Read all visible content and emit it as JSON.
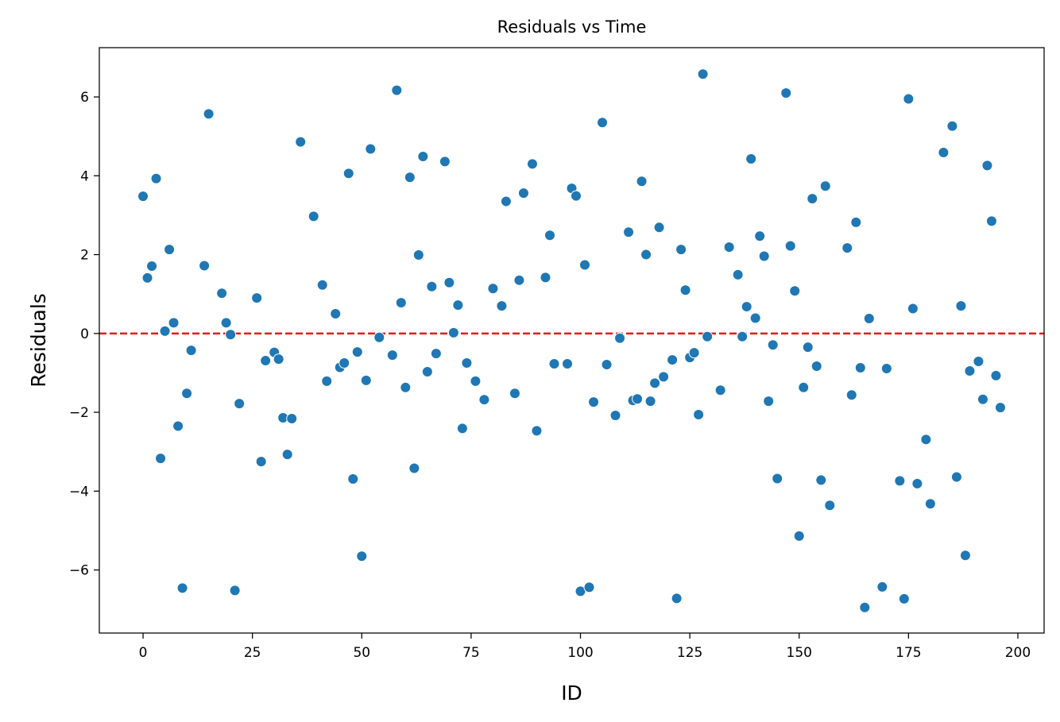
{
  "chart_data": {
    "type": "scatter",
    "title": "Residuals vs Time",
    "xlabel": "ID",
    "ylabel": "Residuals",
    "xlim": [
      -10,
      206
    ],
    "ylim": [
      -7.6,
      7.25
    ],
    "xticks": [
      0,
      25,
      50,
      75,
      100,
      125,
      150,
      175,
      200
    ],
    "xtick_labels": [
      "0",
      "25",
      "50",
      "75",
      "100",
      "125",
      "150",
      "175",
      "200"
    ],
    "yticks": [
      -6,
      -4,
      -2,
      0,
      2,
      4,
      6
    ],
    "ytick_labels": [
      "−6",
      "−4",
      "−2",
      "0",
      "2",
      "4",
      "6"
    ],
    "grid": false,
    "reference_line": {
      "y": 0,
      "style": "dashed",
      "color": "#e41a1c"
    },
    "point_color": "#1f77b4",
    "points": [
      [
        0,
        3.48
      ],
      [
        1,
        1.41
      ],
      [
        2,
        1.71
      ],
      [
        3,
        3.93
      ],
      [
        4,
        -3.17
      ],
      [
        5,
        0.06
      ],
      [
        6,
        2.13
      ],
      [
        7,
        0.27
      ],
      [
        8,
        -2.35
      ],
      [
        9,
        -6.46
      ],
      [
        10,
        -1.52
      ],
      [
        11,
        -0.43
      ],
      [
        14,
        1.72
      ],
      [
        15,
        5.57
      ],
      [
        18,
        1.02
      ],
      [
        19,
        0.27
      ],
      [
        20,
        -0.03
      ],
      [
        21,
        -6.52
      ],
      [
        22,
        -1.78
      ],
      [
        26,
        0.9
      ],
      [
        27,
        -3.25
      ],
      [
        28,
        -0.69
      ],
      [
        30,
        -0.48
      ],
      [
        31,
        -0.65
      ],
      [
        32,
        -2.14
      ],
      [
        33,
        -3.07
      ],
      [
        34,
        -2.16
      ],
      [
        36,
        4.86
      ],
      [
        39,
        2.97
      ],
      [
        41,
        1.23
      ],
      [
        42,
        -1.21
      ],
      [
        44,
        0.5
      ],
      [
        45,
        -0.86
      ],
      [
        46,
        -0.75
      ],
      [
        47,
        4.06
      ],
      [
        48,
        -3.69
      ],
      [
        49,
        -0.47
      ],
      [
        50,
        -5.65
      ],
      [
        51,
        -1.19
      ],
      [
        52,
        4.68
      ],
      [
        54,
        -0.1
      ],
      [
        57,
        -0.55
      ],
      [
        58,
        6.17
      ],
      [
        59,
        0.78
      ],
      [
        60,
        -1.37
      ],
      [
        61,
        3.96
      ],
      [
        62,
        -3.42
      ],
      [
        63,
        1.99
      ],
      [
        64,
        4.49
      ],
      [
        65,
        -0.97
      ],
      [
        66,
        1.19
      ],
      [
        67,
        -0.51
      ],
      [
        69,
        4.36
      ],
      [
        70,
        1.29
      ],
      [
        71,
        0.02
      ],
      [
        72,
        0.72
      ],
      [
        73,
        -2.41
      ],
      [
        74,
        -0.75
      ],
      [
        76,
        -1.21
      ],
      [
        78,
        -1.68
      ],
      [
        80,
        1.14
      ],
      [
        82,
        0.7
      ],
      [
        83,
        3.35
      ],
      [
        85,
        -1.52
      ],
      [
        86,
        1.35
      ],
      [
        87,
        3.56
      ],
      [
        89,
        4.3
      ],
      [
        90,
        -2.47
      ],
      [
        92,
        1.42
      ],
      [
        93,
        2.49
      ],
      [
        94,
        -0.77
      ],
      [
        97,
        -0.77
      ],
      [
        98,
        3.68
      ],
      [
        99,
        3.49
      ],
      [
        100,
        -6.54
      ],
      [
        101,
        1.74
      ],
      [
        102,
        -6.44
      ],
      [
        103,
        -1.74
      ],
      [
        105,
        5.35
      ],
      [
        106,
        -0.79
      ],
      [
        108,
        -2.08
      ],
      [
        109,
        -0.12
      ],
      [
        111,
        2.57
      ],
      [
        112,
        -1.7
      ],
      [
        113,
        -1.66
      ],
      [
        114,
        3.86
      ],
      [
        115,
        2.0
      ],
      [
        116,
        -1.72
      ],
      [
        117,
        -1.26
      ],
      [
        118,
        2.69
      ],
      [
        119,
        -1.1
      ],
      [
        121,
        -0.67
      ],
      [
        122,
        -6.72
      ],
      [
        123,
        2.13
      ],
      [
        124,
        1.1
      ],
      [
        125,
        -0.61
      ],
      [
        126,
        -0.49
      ],
      [
        127,
        -2.06
      ],
      [
        128,
        6.58
      ],
      [
        129,
        -0.08
      ],
      [
        132,
        -1.44
      ],
      [
        134,
        2.19
      ],
      [
        136,
        1.49
      ],
      [
        137,
        -0.08
      ],
      [
        138,
        0.68
      ],
      [
        139,
        4.43
      ],
      [
        140,
        0.39
      ],
      [
        141,
        2.47
      ],
      [
        142,
        1.96
      ],
      [
        143,
        -1.72
      ],
      [
        144,
        -0.29
      ],
      [
        145,
        -3.68
      ],
      [
        147,
        6.1
      ],
      [
        148,
        2.22
      ],
      [
        149,
        1.08
      ],
      [
        150,
        -5.14
      ],
      [
        151,
        -1.37
      ],
      [
        152,
        -0.35
      ],
      [
        153,
        3.42
      ],
      [
        154,
        -0.83
      ],
      [
        155,
        -3.72
      ],
      [
        156,
        3.74
      ],
      [
        157,
        -4.36
      ],
      [
        161,
        2.17
      ],
      [
        162,
        -1.56
      ],
      [
        163,
        2.82
      ],
      [
        164,
        -0.87
      ],
      [
        165,
        -6.95
      ],
      [
        166,
        0.38
      ],
      [
        169,
        -6.43
      ],
      [
        170,
        -0.89
      ],
      [
        173,
        -3.74
      ],
      [
        174,
        -6.73
      ],
      [
        175,
        5.95
      ],
      [
        176,
        0.63
      ],
      [
        177,
        -3.81
      ],
      [
        179,
        -2.69
      ],
      [
        180,
        -4.32
      ],
      [
        183,
        4.59
      ],
      [
        185,
        5.26
      ],
      [
        186,
        -3.64
      ],
      [
        187,
        0.7
      ],
      [
        188,
        -5.63
      ],
      [
        189,
        -0.95
      ],
      [
        191,
        -0.71
      ],
      [
        192,
        -1.67
      ],
      [
        193,
        4.26
      ],
      [
        194,
        2.85
      ],
      [
        195,
        -1.07
      ],
      [
        196,
        -1.88
      ]
    ]
  }
}
